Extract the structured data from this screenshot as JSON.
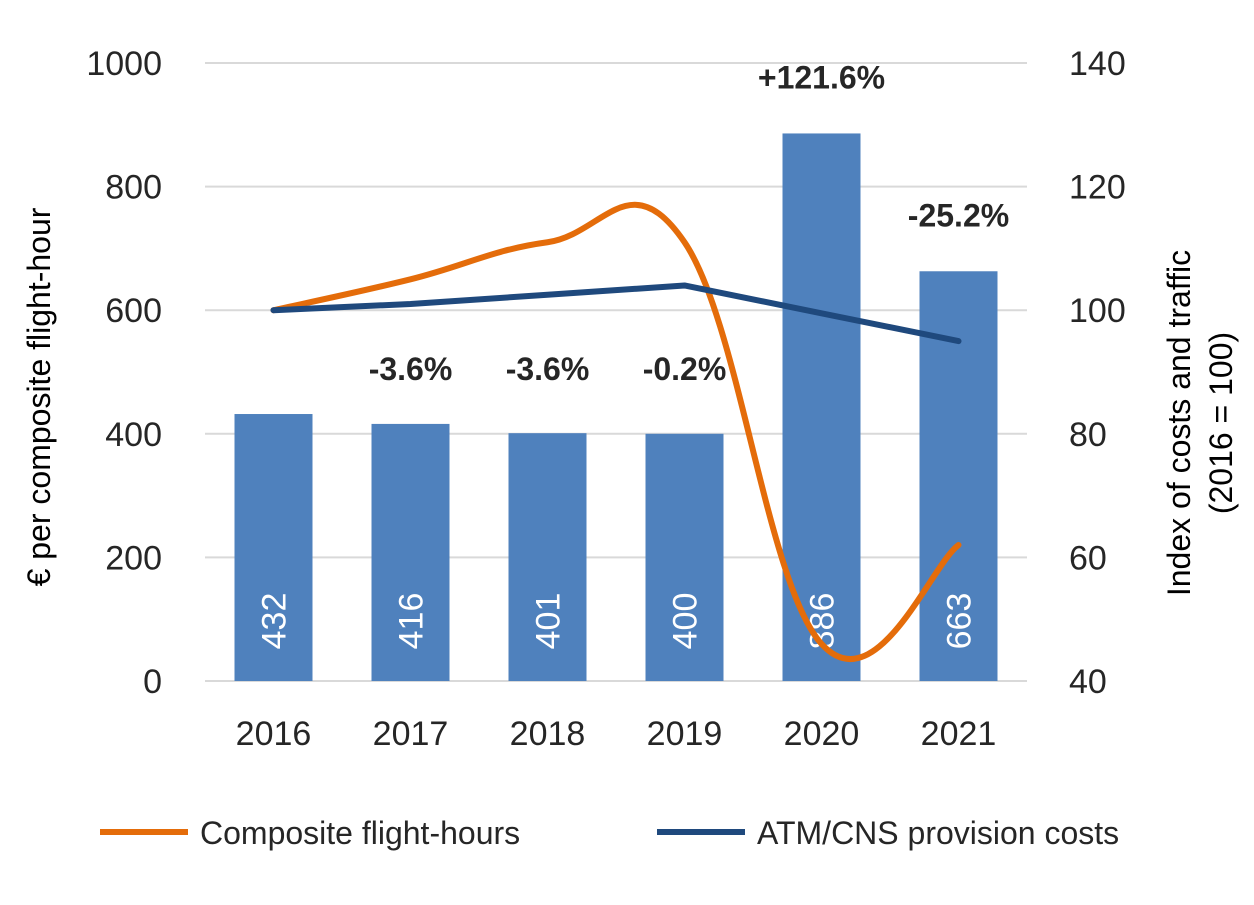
{
  "chart_data": {
    "type": "bar",
    "categories": [
      "2016",
      "2017",
      "2018",
      "2019",
      "2020",
      "2021"
    ],
    "bars": {
      "values": [
        432,
        416,
        401,
        400,
        886,
        663
      ],
      "labels": [
        "432",
        "416",
        "401",
        "400",
        "886",
        "663"
      ],
      "color": "#4f81bd",
      "change_labels": [
        "",
        "-3.6%",
        "-3.6%",
        "-0.2%",
        "+121.6%",
        "-25.2%"
      ]
    },
    "series": [
      {
        "name": "Composite flight-hours",
        "type": "line",
        "axis": "right",
        "smooth": true,
        "color": "#e46c0a",
        "values": [
          100,
          105,
          111,
          111,
          46,
          62
        ]
      },
      {
        "name": "ATM/CNS provision costs",
        "type": "line",
        "axis": "right",
        "smooth": false,
        "color": "#1f497d",
        "values": [
          100,
          101,
          102.5,
          104,
          99.5,
          95
        ]
      }
    ],
    "left_axis": {
      "label": "€ per composite flight-hour",
      "ylim": [
        0,
        1000
      ],
      "ticks": [
        "0",
        "200",
        "400",
        "600",
        "800",
        "1000"
      ]
    },
    "right_axis": {
      "label_line1": "Index of costs and traffic",
      "label_line2": "(2016 = 100)",
      "ylim": [
        40,
        140
      ],
      "ticks": [
        "40",
        "60",
        "80",
        "100",
        "120",
        "140"
      ]
    },
    "grid": true,
    "grid_color": "#d9d9d9",
    "legend_position": "bottom"
  }
}
